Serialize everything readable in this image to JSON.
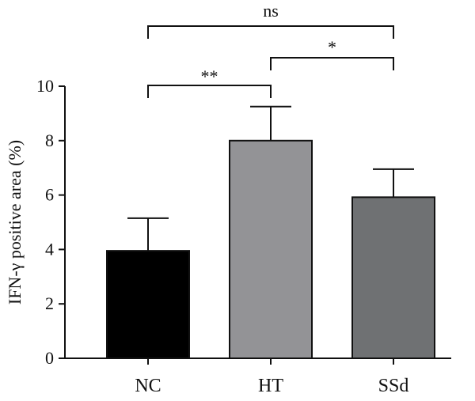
{
  "chart_data": {
    "type": "bar",
    "title": "",
    "xlabel": "",
    "ylabel": "IFN-γ positive area (%)",
    "ylim": [
      0,
      10
    ],
    "yticks": [
      0,
      2,
      4,
      6,
      8,
      10
    ],
    "categories": [
      "NC",
      "HT",
      "SSd"
    ],
    "values": [
      3.95,
      8.0,
      5.92
    ],
    "error_upper": [
      1.2,
      1.25,
      1.03
    ],
    "bar_colors": [
      "#000000",
      "#939396",
      "#6f7173"
    ],
    "significance": [
      {
        "from": "NC",
        "to": "HT",
        "label": "**"
      },
      {
        "from": "HT",
        "to": "SSd",
        "label": "*"
      },
      {
        "from": "NC",
        "to": "SSd",
        "label": "ns"
      }
    ]
  }
}
